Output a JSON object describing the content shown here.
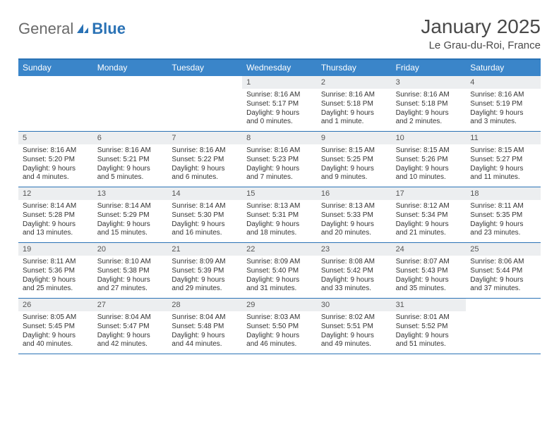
{
  "brand": {
    "part1": "General",
    "part2": "Blue"
  },
  "title": "January 2025",
  "subtitle": "Le Grau-du-Roi, France",
  "colors": {
    "header_bg": "#3a85c9",
    "border": "#2a72b5",
    "daynum_bg": "#eceef0",
    "text": "#333333",
    "title": "#494949",
    "logo_gray": "#6a6a6a",
    "logo_blue": "#2a72b5"
  },
  "day_headers": [
    "Sunday",
    "Monday",
    "Tuesday",
    "Wednesday",
    "Thursday",
    "Friday",
    "Saturday"
  ],
  "weeks": [
    [
      null,
      null,
      null,
      {
        "n": "1",
        "sr": "8:16 AM",
        "ss": "5:17 PM",
        "dl": "9 hours and 0 minutes."
      },
      {
        "n": "2",
        "sr": "8:16 AM",
        "ss": "5:18 PM",
        "dl": "9 hours and 1 minute."
      },
      {
        "n": "3",
        "sr": "8:16 AM",
        "ss": "5:18 PM",
        "dl": "9 hours and 2 minutes."
      },
      {
        "n": "4",
        "sr": "8:16 AM",
        "ss": "5:19 PM",
        "dl": "9 hours and 3 minutes."
      }
    ],
    [
      {
        "n": "5",
        "sr": "8:16 AM",
        "ss": "5:20 PM",
        "dl": "9 hours and 4 minutes."
      },
      {
        "n": "6",
        "sr": "8:16 AM",
        "ss": "5:21 PM",
        "dl": "9 hours and 5 minutes."
      },
      {
        "n": "7",
        "sr": "8:16 AM",
        "ss": "5:22 PM",
        "dl": "9 hours and 6 minutes."
      },
      {
        "n": "8",
        "sr": "8:16 AM",
        "ss": "5:23 PM",
        "dl": "9 hours and 7 minutes."
      },
      {
        "n": "9",
        "sr": "8:15 AM",
        "ss": "5:25 PM",
        "dl": "9 hours and 9 minutes."
      },
      {
        "n": "10",
        "sr": "8:15 AM",
        "ss": "5:26 PM",
        "dl": "9 hours and 10 minutes."
      },
      {
        "n": "11",
        "sr": "8:15 AM",
        "ss": "5:27 PM",
        "dl": "9 hours and 11 minutes."
      }
    ],
    [
      {
        "n": "12",
        "sr": "8:14 AM",
        "ss": "5:28 PM",
        "dl": "9 hours and 13 minutes."
      },
      {
        "n": "13",
        "sr": "8:14 AM",
        "ss": "5:29 PM",
        "dl": "9 hours and 15 minutes."
      },
      {
        "n": "14",
        "sr": "8:14 AM",
        "ss": "5:30 PM",
        "dl": "9 hours and 16 minutes."
      },
      {
        "n": "15",
        "sr": "8:13 AM",
        "ss": "5:31 PM",
        "dl": "9 hours and 18 minutes."
      },
      {
        "n": "16",
        "sr": "8:13 AM",
        "ss": "5:33 PM",
        "dl": "9 hours and 20 minutes."
      },
      {
        "n": "17",
        "sr": "8:12 AM",
        "ss": "5:34 PM",
        "dl": "9 hours and 21 minutes."
      },
      {
        "n": "18",
        "sr": "8:11 AM",
        "ss": "5:35 PM",
        "dl": "9 hours and 23 minutes."
      }
    ],
    [
      {
        "n": "19",
        "sr": "8:11 AM",
        "ss": "5:36 PM",
        "dl": "9 hours and 25 minutes."
      },
      {
        "n": "20",
        "sr": "8:10 AM",
        "ss": "5:38 PM",
        "dl": "9 hours and 27 minutes."
      },
      {
        "n": "21",
        "sr": "8:09 AM",
        "ss": "5:39 PM",
        "dl": "9 hours and 29 minutes."
      },
      {
        "n": "22",
        "sr": "8:09 AM",
        "ss": "5:40 PM",
        "dl": "9 hours and 31 minutes."
      },
      {
        "n": "23",
        "sr": "8:08 AM",
        "ss": "5:42 PM",
        "dl": "9 hours and 33 minutes."
      },
      {
        "n": "24",
        "sr": "8:07 AM",
        "ss": "5:43 PM",
        "dl": "9 hours and 35 minutes."
      },
      {
        "n": "25",
        "sr": "8:06 AM",
        "ss": "5:44 PM",
        "dl": "9 hours and 37 minutes."
      }
    ],
    [
      {
        "n": "26",
        "sr": "8:05 AM",
        "ss": "5:45 PM",
        "dl": "9 hours and 40 minutes."
      },
      {
        "n": "27",
        "sr": "8:04 AM",
        "ss": "5:47 PM",
        "dl": "9 hours and 42 minutes."
      },
      {
        "n": "28",
        "sr": "8:04 AM",
        "ss": "5:48 PM",
        "dl": "9 hours and 44 minutes."
      },
      {
        "n": "29",
        "sr": "8:03 AM",
        "ss": "5:50 PM",
        "dl": "9 hours and 46 minutes."
      },
      {
        "n": "30",
        "sr": "8:02 AM",
        "ss": "5:51 PM",
        "dl": "9 hours and 49 minutes."
      },
      {
        "n": "31",
        "sr": "8:01 AM",
        "ss": "5:52 PM",
        "dl": "9 hours and 51 minutes."
      },
      null
    ]
  ],
  "labels": {
    "sunrise": "Sunrise:",
    "sunset": "Sunset:",
    "daylight": "Daylight:"
  }
}
